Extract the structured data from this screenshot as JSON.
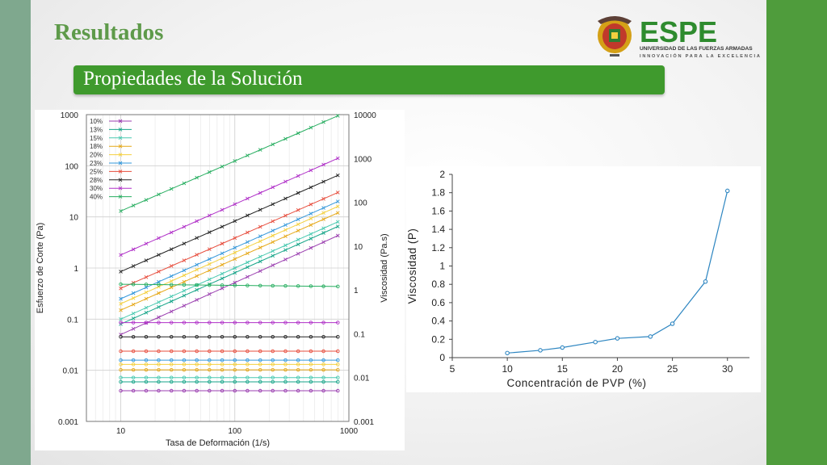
{
  "slide": {
    "title": "Resultados",
    "banner": "Propiedades de la Solución",
    "logo": {
      "brand": "ESPE",
      "line1": "UNIVERSIDAD DE LAS FUERZAS ARMADAS",
      "line2": "INNOVACIÓN PARA LA EXCELENCIA"
    },
    "colors": {
      "green_bar": "#4f9c3c",
      "side_bar": "#7fa88e",
      "title": "#5e9a4a",
      "banner": "#3f9a2d"
    }
  },
  "chart_data": [
    {
      "type": "line",
      "xlabel": "Tasa de Deformación (1/s)",
      "ylabel": "Esfuerzo de Corte (Pa)",
      "y2label": "Viscosidad (Pa.s)",
      "xscale": "log",
      "yscale": "log",
      "y2scale": "log",
      "xlim": [
        5,
        1000
      ],
      "ylim": [
        0.001,
        1000
      ],
      "y2lim": [
        0.001,
        10000
      ],
      "x_ticks": [
        "10",
        "100",
        "1000"
      ],
      "y_ticks": [
        "1000",
        "100",
        "10",
        "1",
        "0.1",
        "0.01",
        "0.001"
      ],
      "y2_ticks": [
        "10000",
        "1000",
        "100",
        "10",
        "1",
        "0.1",
        "0.01",
        "0.001"
      ],
      "legend_position": "top-left",
      "grid": true,
      "x_points": [
        10,
        12.9,
        16.7,
        21.5,
        27.8,
        35.9,
        46.4,
        59.9,
        77.4,
        100,
        129,
        167,
        215,
        278,
        359,
        464,
        599,
        800
      ],
      "series": [
        {
          "name": "10%",
          "color": "#9b3fb0",
          "stress_at_10": 0.05,
          "stress_at_800": 4.3,
          "viscosity": 0.005
        },
        {
          "name": "13%",
          "color": "#17a589",
          "stress_at_10": 0.08,
          "stress_at_800": 6.5,
          "viscosity": 0.008
        },
        {
          "name": "15%",
          "color": "#48c9b0",
          "stress_at_10": 0.1,
          "stress_at_800": 8.0,
          "viscosity": 0.01
        },
        {
          "name": "18%",
          "color": "#e6a817",
          "stress_at_10": 0.15,
          "stress_at_800": 12,
          "viscosity": 0.015
        },
        {
          "name": "20%",
          "color": "#f4d03f",
          "stress_at_10": 0.2,
          "stress_at_800": 16,
          "viscosity": 0.02
        },
        {
          "name": "23%",
          "color": "#3498db",
          "stress_at_10": 0.25,
          "stress_at_800": 20,
          "viscosity": 0.025
        },
        {
          "name": "25%",
          "color": "#e74c3c",
          "stress_at_10": 0.4,
          "stress_at_800": 30,
          "viscosity": 0.04
        },
        {
          "name": "28%",
          "color": "#222222",
          "stress_at_10": 0.85,
          "stress_at_800": 65,
          "viscosity": 0.085
        },
        {
          "name": "30%",
          "color": "#b030c8",
          "stress_at_10": 1.8,
          "stress_at_800": 140,
          "viscosity": 0.18
        },
        {
          "name": "40%",
          "color": "#27ae60",
          "stress_at_10": 13,
          "stress_at_800": 950,
          "viscosity": 1.35,
          "viscosity_at_800": 1.2
        }
      ]
    },
    {
      "type": "line",
      "xlabel": "Concentración de PVP (%)",
      "ylabel": "Viscosidad (P)",
      "xlim": [
        5,
        32
      ],
      "ylim": [
        0,
        2
      ],
      "x_ticks": [
        5,
        10,
        15,
        20,
        25,
        30
      ],
      "y_ticks": [
        "0",
        "0.2",
        "0.4",
        "0.6",
        "0.8",
        "1",
        "1.2",
        "1.4",
        "1.6",
        "1.8",
        "2"
      ],
      "color": "#2e86c1",
      "x": [
        10,
        13,
        15,
        18,
        20,
        23,
        25,
        28,
        30
      ],
      "y": [
        0.05,
        0.08,
        0.11,
        0.17,
        0.21,
        0.23,
        0.37,
        0.83,
        1.82
      ]
    }
  ]
}
